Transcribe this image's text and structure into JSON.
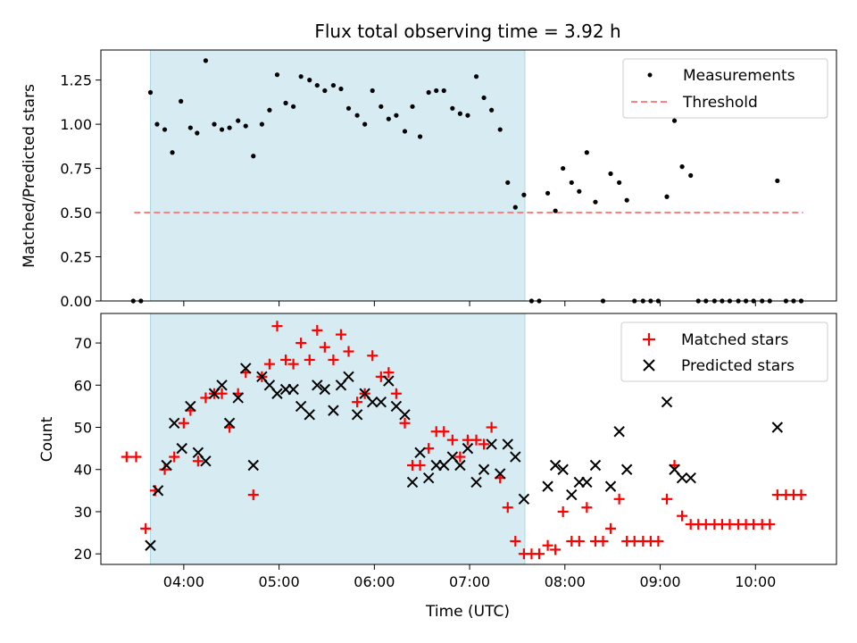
{
  "chart_data": [
    {
      "type": "scatter",
      "title": "Flux total observing time = 3.92 h",
      "xlabel": "",
      "ylabel": "Matched/Predicted stars",
      "ylim": [
        0,
        1.42
      ],
      "yticks": [
        0.0,
        0.25,
        0.5,
        0.75,
        1.0,
        1.25
      ],
      "ytick_labels": [
        "0.00",
        "0.25",
        "0.50",
        "0.75",
        "1.00",
        "1.25"
      ],
      "xlim_hours": [
        3.13,
        10.85
      ],
      "legend_position": "top-right",
      "shaded_span_hours": [
        3.65,
        7.58
      ],
      "threshold": {
        "name": "Threshold",
        "value": 0.5,
        "x_start": 3.48,
        "x_end": 10.5,
        "color": "#ff7f7f"
      },
      "series": [
        {
          "name": "Measurements",
          "color": "#000000",
          "points": [
            [
              3.47,
              0
            ],
            [
              3.55,
              0
            ],
            [
              3.65,
              1.18
            ],
            [
              3.72,
              1.0
            ],
            [
              3.8,
              0.97
            ],
            [
              3.88,
              0.84
            ],
            [
              3.97,
              1.13
            ],
            [
              4.07,
              0.98
            ],
            [
              4.14,
              0.95
            ],
            [
              4.23,
              1.36
            ],
            [
              4.32,
              1.0
            ],
            [
              4.4,
              0.97
            ],
            [
              4.48,
              0.98
            ],
            [
              4.57,
              1.02
            ],
            [
              4.65,
              0.99
            ],
            [
              4.73,
              0.82
            ],
            [
              4.82,
              1.0
            ],
            [
              4.9,
              1.08
            ],
            [
              4.98,
              1.28
            ],
            [
              5.07,
              1.12
            ],
            [
              5.15,
              1.1
            ],
            [
              5.23,
              1.27
            ],
            [
              5.32,
              1.25
            ],
            [
              5.4,
              1.22
            ],
            [
              5.48,
              1.19
            ],
            [
              5.57,
              1.22
            ],
            [
              5.65,
              1.2
            ],
            [
              5.73,
              1.09
            ],
            [
              5.82,
              1.05
            ],
            [
              5.9,
              1.0
            ],
            [
              5.98,
              1.19
            ],
            [
              6.07,
              1.1
            ],
            [
              6.15,
              1.03
            ],
            [
              6.23,
              1.05
            ],
            [
              6.32,
              0.96
            ],
            [
              6.4,
              1.1
            ],
            [
              6.48,
              0.93
            ],
            [
              6.57,
              1.18
            ],
            [
              6.65,
              1.19
            ],
            [
              6.73,
              1.19
            ],
            [
              6.82,
              1.09
            ],
            [
              6.9,
              1.06
            ],
            [
              6.98,
              1.05
            ],
            [
              7.07,
              1.27
            ],
            [
              7.15,
              1.15
            ],
            [
              7.23,
              1.08
            ],
            [
              7.32,
              0.97
            ],
            [
              7.4,
              0.67
            ],
            [
              7.48,
              0.53
            ],
            [
              7.57,
              0.6
            ],
            [
              7.65,
              0
            ],
            [
              7.73,
              0
            ],
            [
              7.82,
              0.61
            ],
            [
              7.9,
              0.51
            ],
            [
              7.98,
              0.75
            ],
            [
              8.07,
              0.67
            ],
            [
              8.15,
              0.62
            ],
            [
              8.23,
              0.84
            ],
            [
              8.32,
              0.56
            ],
            [
              8.4,
              0
            ],
            [
              8.48,
              0.72
            ],
            [
              8.57,
              0.67
            ],
            [
              8.65,
              0.57
            ],
            [
              8.73,
              0
            ],
            [
              8.82,
              0
            ],
            [
              8.9,
              0
            ],
            [
              8.98,
              0
            ],
            [
              9.07,
              0.59
            ],
            [
              9.15,
              1.02
            ],
            [
              9.23,
              0.76
            ],
            [
              9.32,
              0.71
            ],
            [
              9.4,
              0
            ],
            [
              9.48,
              0
            ],
            [
              9.57,
              0
            ],
            [
              9.65,
              0
            ],
            [
              9.73,
              0
            ],
            [
              9.82,
              0
            ],
            [
              9.9,
              0
            ],
            [
              9.98,
              0
            ],
            [
              10.07,
              0
            ],
            [
              10.15,
              0
            ],
            [
              10.23,
              0.68
            ],
            [
              10.32,
              0
            ],
            [
              10.4,
              0
            ],
            [
              10.48,
              0
            ]
          ]
        }
      ]
    },
    {
      "type": "scatter",
      "title": "",
      "xlabel": "Time (UTC)",
      "ylabel": "Count",
      "ylim": [
        17.5,
        77
      ],
      "yticks": [
        20,
        30,
        40,
        50,
        60,
        70
      ],
      "ytick_labels": [
        "20",
        "30",
        "40",
        "50",
        "60",
        "70"
      ],
      "xlim_hours": [
        3.13,
        10.85
      ],
      "xticks_hours": [
        4,
        5,
        6,
        7,
        8,
        9,
        10
      ],
      "xtick_labels": [
        "04:00",
        "05:00",
        "06:00",
        "07:00",
        "08:00",
        "09:00",
        "10:00"
      ],
      "legend_position": "top-right",
      "shaded_span_hours": [
        3.65,
        7.58
      ],
      "series": [
        {
          "name": "Matched stars",
          "marker": "plus",
          "color": "#ff0000",
          "points": [
            [
              3.4,
              43
            ],
            [
              3.5,
              43
            ],
            [
              3.6,
              26
            ],
            [
              3.7,
              35
            ],
            [
              3.8,
              40
            ],
            [
              3.9,
              43
            ],
            [
              4.0,
              51
            ],
            [
              4.07,
              54
            ],
            [
              4.15,
              42
            ],
            [
              4.23,
              57
            ],
            [
              4.32,
              58
            ],
            [
              4.4,
              58
            ],
            [
              4.48,
              50
            ],
            [
              4.57,
              58
            ],
            [
              4.65,
              63
            ],
            [
              4.73,
              34
            ],
            [
              4.82,
              62
            ],
            [
              4.9,
              65
            ],
            [
              4.98,
              74
            ],
            [
              5.07,
              66
            ],
            [
              5.15,
              65
            ],
            [
              5.23,
              70
            ],
            [
              5.32,
              66
            ],
            [
              5.4,
              73
            ],
            [
              5.48,
              69
            ],
            [
              5.57,
              66
            ],
            [
              5.65,
              72
            ],
            [
              5.73,
              68
            ],
            [
              5.82,
              56
            ],
            [
              5.9,
              58
            ],
            [
              5.98,
              67
            ],
            [
              6.07,
              62
            ],
            [
              6.15,
              63
            ],
            [
              6.23,
              58
            ],
            [
              6.32,
              51
            ],
            [
              6.4,
              41
            ],
            [
              6.48,
              41
            ],
            [
              6.57,
              45
            ],
            [
              6.65,
              49
            ],
            [
              6.73,
              49
            ],
            [
              6.82,
              47
            ],
            [
              6.9,
              43
            ],
            [
              6.98,
              47
            ],
            [
              7.07,
              47
            ],
            [
              7.15,
              46
            ],
            [
              7.23,
              50
            ],
            [
              7.32,
              38
            ],
            [
              7.4,
              31
            ],
            [
              7.48,
              23
            ],
            [
              7.57,
              20
            ],
            [
              7.65,
              20
            ],
            [
              7.73,
              20
            ],
            [
              7.82,
              22
            ],
            [
              7.9,
              21
            ],
            [
              7.98,
              30
            ],
            [
              8.07,
              23
            ],
            [
              8.15,
              23
            ],
            [
              8.23,
              31
            ],
            [
              8.32,
              23
            ],
            [
              8.4,
              23
            ],
            [
              8.48,
              26
            ],
            [
              8.57,
              33
            ],
            [
              8.65,
              23
            ],
            [
              8.73,
              23
            ],
            [
              8.82,
              23
            ],
            [
              8.9,
              23
            ],
            [
              8.98,
              23
            ],
            [
              9.07,
              33
            ],
            [
              9.15,
              41
            ],
            [
              9.23,
              29
            ],
            [
              9.32,
              27
            ],
            [
              9.4,
              27
            ],
            [
              9.48,
              27
            ],
            [
              9.57,
              27
            ],
            [
              9.65,
              27
            ],
            [
              9.73,
              27
            ],
            [
              9.82,
              27
            ],
            [
              9.9,
              27
            ],
            [
              9.98,
              27
            ],
            [
              10.07,
              27
            ],
            [
              10.15,
              27
            ],
            [
              10.23,
              34
            ],
            [
              10.32,
              34
            ],
            [
              10.4,
              34
            ],
            [
              10.48,
              34
            ]
          ]
        },
        {
          "name": "Predicted stars",
          "marker": "x",
          "color": "#000000",
          "points": [
            [
              3.65,
              22
            ],
            [
              3.73,
              35
            ],
            [
              3.82,
              41
            ],
            [
              3.9,
              51
            ],
            [
              3.98,
              45
            ],
            [
              4.07,
              55
            ],
            [
              4.15,
              44
            ],
            [
              4.23,
              42
            ],
            [
              4.32,
              58
            ],
            [
              4.4,
              60
            ],
            [
              4.48,
              51
            ],
            [
              4.57,
              57
            ],
            [
              4.65,
              64
            ],
            [
              4.73,
              41
            ],
            [
              4.82,
              62
            ],
            [
              4.9,
              60
            ],
            [
              4.98,
              58
            ],
            [
              5.07,
              59
            ],
            [
              5.15,
              59
            ],
            [
              5.23,
              55
            ],
            [
              5.32,
              53
            ],
            [
              5.4,
              60
            ],
            [
              5.48,
              59
            ],
            [
              5.57,
              54
            ],
            [
              5.65,
              60
            ],
            [
              5.73,
              62
            ],
            [
              5.82,
              53
            ],
            [
              5.9,
              58
            ],
            [
              5.98,
              56
            ],
            [
              6.07,
              56
            ],
            [
              6.15,
              61
            ],
            [
              6.23,
              55
            ],
            [
              6.32,
              53
            ],
            [
              6.4,
              37
            ],
            [
              6.48,
              44
            ],
            [
              6.57,
              38
            ],
            [
              6.65,
              41
            ],
            [
              6.73,
              41
            ],
            [
              6.82,
              43
            ],
            [
              6.9,
              41
            ],
            [
              6.98,
              45
            ],
            [
              7.07,
              37
            ],
            [
              7.15,
              40
            ],
            [
              7.23,
              46
            ],
            [
              7.32,
              39
            ],
            [
              7.4,
              46
            ],
            [
              7.48,
              43
            ],
            [
              7.57,
              33
            ],
            [
              7.82,
              36
            ],
            [
              7.9,
              41
            ],
            [
              7.98,
              40
            ],
            [
              8.07,
              34
            ],
            [
              8.15,
              37
            ],
            [
              8.23,
              37
            ],
            [
              8.32,
              41
            ],
            [
              8.48,
              36
            ],
            [
              8.57,
              49
            ],
            [
              8.65,
              40
            ],
            [
              9.07,
              56
            ],
            [
              9.15,
              40
            ],
            [
              9.23,
              38
            ],
            [
              9.32,
              38
            ],
            [
              10.23,
              50
            ]
          ]
        }
      ]
    }
  ]
}
